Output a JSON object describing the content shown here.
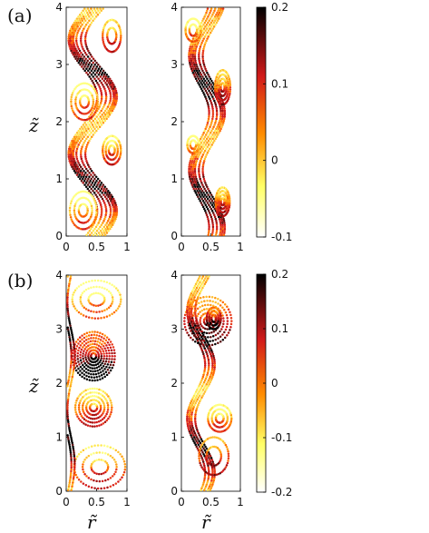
{
  "chart_data": [
    {
      "type": "scatter",
      "panel": "(a)",
      "subplots": [
        {
          "position": "left",
          "xlim": [
            0,
            1
          ],
          "ylim": [
            0,
            4
          ],
          "x_ticks": [
            "0",
            "0.5",
            "1"
          ],
          "y_ticks": [
            "0",
            "1",
            "2",
            "3",
            "4"
          ]
        },
        {
          "position": "right",
          "xlim": [
            0,
            1
          ],
          "ylim": [
            0,
            4
          ],
          "x_ticks": [
            "0",
            "0.5",
            "1"
          ],
          "y_ticks": [
            "0",
            "1",
            "2",
            "3",
            "4"
          ]
        }
      ],
      "ylabel": "z̃",
      "colorbar": {
        "range": [
          -0.1,
          0.2
        ],
        "ticks": [
          "0.2",
          "0.1",
          "0",
          "-0.1"
        ],
        "colormap": [
          "#000000",
          "#d11a1a",
          "#ff8c00",
          "#ffff66",
          "#ffffff"
        ]
      }
    },
    {
      "type": "scatter",
      "panel": "(b)",
      "subplots": [
        {
          "position": "left",
          "xlim": [
            0,
            1
          ],
          "ylim": [
            0,
            4
          ],
          "x_ticks": [
            "0",
            "0.5",
            "1"
          ],
          "y_ticks": [
            "0",
            "1",
            "2",
            "3",
            "4"
          ]
        },
        {
          "position": "right",
          "xlim": [
            0,
            1
          ],
          "ylim": [
            0,
            4
          ],
          "x_ticks": [
            "0",
            "0.5",
            "1"
          ],
          "y_ticks": [
            "0",
            "1",
            "2",
            "3",
            "4"
          ]
        }
      ],
      "xlabel": "r̃",
      "ylabel": "z̃",
      "colorbar": {
        "range": [
          -0.2,
          0.2
        ],
        "ticks": [
          "0.2",
          "0.1",
          "0",
          "-0.1",
          "-0.2"
        ],
        "colormap": [
          "#000000",
          "#d11a1a",
          "#ff8c00",
          "#ffff66",
          "#ffffff"
        ]
      }
    }
  ]
}
